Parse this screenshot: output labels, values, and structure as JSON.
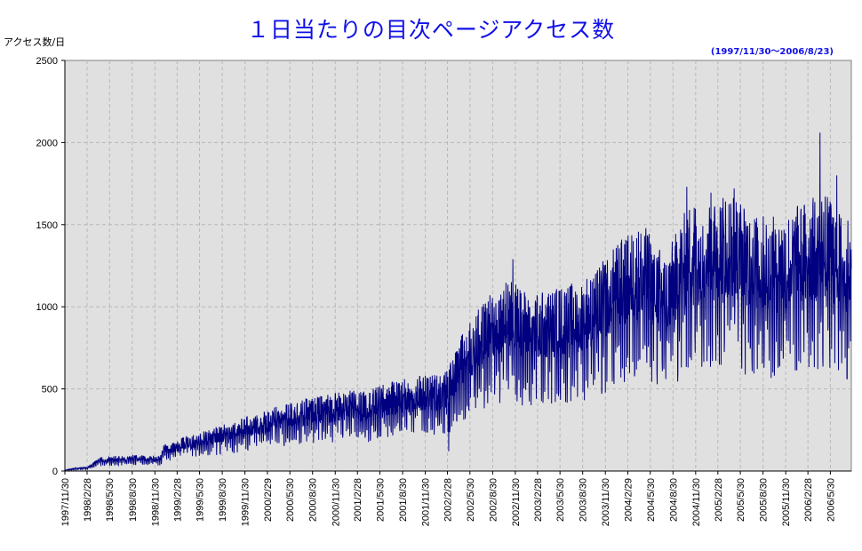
{
  "chart_data": {
    "type": "line",
    "title": "１日当たりの目次ページアクセス数",
    "subtitle": "(1997/11/30〜2006/8/23)",
    "ylabel": "アクセス数/日",
    "xlabel": "",
    "ylim": [
      0,
      2500
    ],
    "yticks": [
      0,
      500,
      1000,
      1500,
      2000,
      2500
    ],
    "grid": true,
    "line_color": "#000080",
    "plot_background": "#e0e0e0",
    "x_start": "1997/11/30",
    "x_end": "2006/8/23",
    "x_tick_labels": [
      "1997/11/30",
      "1998/2/28",
      "1998/5/30",
      "1998/8/30",
      "1998/11/30",
      "1999/2/28",
      "1999/5/30",
      "1999/8/30",
      "1999/11/30",
      "2000/2/29",
      "2000/5/30",
      "2000/8/30",
      "2000/11/30",
      "2001/2/28",
      "2001/5/30",
      "2001/8/30",
      "2001/11/30",
      "2002/2/28",
      "2002/5/30",
      "2002/8/30",
      "2002/11/30",
      "2003/2/28",
      "2003/5/30",
      "2003/8/30",
      "2003/11/30",
      "2004/2/29",
      "2004/5/30",
      "2004/8/30",
      "2004/11/30",
      "2005/2/28",
      "2005/5/30",
      "2005/8/30",
      "2005/11/30",
      "2006/2/28",
      "2006/5/30"
    ],
    "series": [
      {
        "trend": [
          {
            "x": "1997/11/30",
            "y": 5
          },
          {
            "x": "1998/1/15",
            "y": 15
          },
          {
            "x": "1998/3/1",
            "y": 20
          },
          {
            "x": "1998/4/15",
            "y": 60
          },
          {
            "x": "1998/6/15",
            "y": 70
          },
          {
            "x": "1998/9/1",
            "y": 75
          },
          {
            "x": "1998/12/20",
            "y": 70
          },
          {
            "x": "1999/1/5",
            "y": 120
          },
          {
            "x": "1999/4/1",
            "y": 160
          },
          {
            "x": "1999/7/1",
            "y": 190
          },
          {
            "x": "1999/10/1",
            "y": 230
          },
          {
            "x": "2000/1/1",
            "y": 260
          },
          {
            "x": "2000/4/1",
            "y": 300
          },
          {
            "x": "2000/7/1",
            "y": 330
          },
          {
            "x": "2000/10/1",
            "y": 350
          },
          {
            "x": "2001/1/1",
            "y": 380
          },
          {
            "x": "2001/4/1",
            "y": 370
          },
          {
            "x": "2001/7/1",
            "y": 410
          },
          {
            "x": "2001/10/1",
            "y": 440
          },
          {
            "x": "2002/1/1",
            "y": 450
          },
          {
            "x": "2002/3/1",
            "y": 470
          },
          {
            "x": "2002/5/1",
            "y": 650
          },
          {
            "x": "2002/8/1",
            "y": 800
          },
          {
            "x": "2002/11/1",
            "y": 900
          },
          {
            "x": "2003/2/1",
            "y": 820
          },
          {
            "x": "2003/5/1",
            "y": 850
          },
          {
            "x": "2003/8/1",
            "y": 880
          },
          {
            "x": "2003/11/1",
            "y": 950
          },
          {
            "x": "2004/2/1",
            "y": 1080
          },
          {
            "x": "2004/5/1",
            "y": 1150
          },
          {
            "x": "2004/8/1",
            "y": 1000
          },
          {
            "x": "2004/11/1",
            "y": 1250
          },
          {
            "x": "2005/2/1",
            "y": 1300
          },
          {
            "x": "2005/5/1",
            "y": 1300
          },
          {
            "x": "2005/8/1",
            "y": 1200
          },
          {
            "x": "2005/11/1",
            "y": 1180
          },
          {
            "x": "2006/2/1",
            "y": 1250
          },
          {
            "x": "2006/5/1",
            "y": 1300
          },
          {
            "x": "2006/8/23",
            "y": 1150
          }
        ],
        "peak": {
          "x": "2006/4/18",
          "y": 2060
        },
        "notable": [
          {
            "x": "2004/10/25",
            "y": 1730
          },
          {
            "x": "2005/5/5",
            "y": 1720
          },
          {
            "x": "2006/6/25",
            "y": 1800
          },
          {
            "x": "2002/11/20",
            "y": 1290
          },
          {
            "x": "2003/11/15",
            "y": 470
          },
          {
            "x": "2002/3/5",
            "y": 120
          },
          {
            "x": "2005/10/15",
            "y": 580
          }
        ]
      }
    ]
  }
}
